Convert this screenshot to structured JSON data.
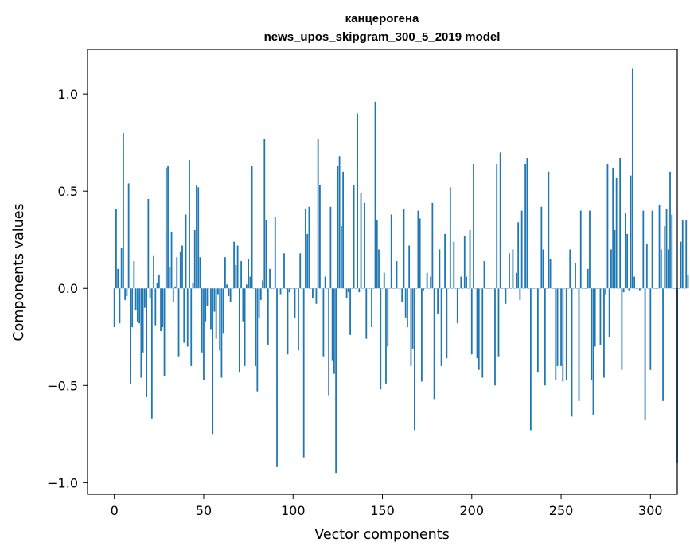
{
  "chart_data": {
    "type": "bar",
    "title_line1": "канцерогена",
    "title_line2": "news_upos_skipgram_300_5_2019 model",
    "xlabel": "Vector components",
    "ylabel": "Components values",
    "xlim": [
      -15,
      315
    ],
    "ylim": [
      -1.06,
      1.23
    ],
    "xticks": [
      0,
      50,
      100,
      150,
      200,
      250,
      300
    ],
    "yticks": [
      1.0,
      0.5,
      0.0,
      -0.5,
      -1.0
    ],
    "ytick_labels": [
      "1.0",
      "0.5",
      "0.0",
      "−0.5",
      "−1.0"
    ],
    "bar_color": "#1f77b4",
    "grid": false,
    "values": [
      -0.2,
      0.41,
      0.1,
      -0.18,
      0.21,
      0.8,
      -0.06,
      -0.04,
      0.54,
      -0.49,
      -0.2,
      0.14,
      -0.11,
      -0.17,
      -0.18,
      -0.46,
      -0.33,
      -0.1,
      -0.56,
      0.46,
      -0.05,
      -0.67,
      0.17,
      -0.19,
      0.03,
      0.07,
      -0.22,
      -0.2,
      -0.45,
      0.62,
      0.63,
      0.11,
      0.29,
      -0.07,
      0.01,
      0.16,
      -0.35,
      0.19,
      0.22,
      -0.28,
      0.38,
      -0.3,
      0.66,
      -0.4,
      0.03,
      0.3,
      0.53,
      0.52,
      0.16,
      -0.33,
      -0.47,
      -0.17,
      -0.09,
      0.0,
      -0.21,
      -0.75,
      -0.12,
      -0.26,
      -0.03,
      -0.32,
      -0.46,
      -0.23,
      0.16,
      0.02,
      -0.04,
      -0.07,
      0.0,
      0.24,
      0.12,
      0.22,
      -0.43,
      0.14,
      -0.17,
      -0.4,
      0.02,
      0.15,
      0.06,
      0.63,
      0.0,
      -0.4,
      -0.53,
      -0.15,
      -0.06,
      0.04,
      0.77,
      0.35,
      -0.29,
      0.1,
      0.0,
      0.0,
      0.37,
      -0.92,
      0.0,
      -0.03,
      0.0,
      0.18,
      0.0,
      -0.34,
      -0.02,
      0.0,
      0.0,
      -0.15,
      0.0,
      -0.32,
      0.18,
      0.0,
      -0.87,
      0.41,
      0.28,
      0.42,
      0.0,
      -0.05,
      0.0,
      -0.08,
      0.77,
      0.53,
      0.0,
      -0.35,
      0.06,
      0.0,
      -0.55,
      0.42,
      -0.37,
      -0.44,
      -0.95,
      0.63,
      0.68,
      0.32,
      0.6,
      0.0,
      -0.05,
      -0.02,
      -0.24,
      0.0,
      0.53,
      0.0,
      0.9,
      -0.02,
      0.49,
      0.0,
      0.44,
      -0.26,
      0.0,
      0.0,
      -0.2,
      0.0,
      0.96,
      0.35,
      0.2,
      -0.52,
      0.0,
      0.08,
      -0.49,
      -0.3,
      0.0,
      0.38,
      0.0,
      0.0,
      0.14,
      0.0,
      0.0,
      -0.07,
      0.41,
      -0.15,
      -0.2,
      0.22,
      -0.4,
      -0.31,
      -0.73,
      0.0,
      0.4,
      0.36,
      -0.48,
      -0.01,
      0.0,
      0.08,
      0.0,
      0.06,
      0.44,
      -0.57,
      0.0,
      -0.13,
      0.2,
      -0.4,
      0.0,
      0.28,
      -0.36,
      0.0,
      0.52,
      0.0,
      0.24,
      0.0,
      -0.18,
      0.0,
      0.06,
      0.0,
      0.27,
      0.06,
      0.0,
      0.3,
      -0.34,
      0.64,
      0.0,
      -0.36,
      -0.42,
      0.0,
      -0.46,
      0.14,
      0.0,
      0.0,
      0.0,
      0.0,
      0.0,
      -0.5,
      0.64,
      -0.35,
      0.7,
      0.0,
      0.0,
      -0.08,
      0.0,
      0.18,
      0.0,
      0.2,
      0.0,
      0.08,
      0.34,
      -0.06,
      0.4,
      0.0,
      0.64,
      0.67,
      0.0,
      -0.73,
      0.0,
      0.0,
      0.0,
      -0.43,
      0.0,
      0.42,
      0.2,
      -0.5,
      0.0,
      0.6,
      0.15,
      0.0,
      0.0,
      -0.47,
      -0.4,
      0.0,
      -0.4,
      -0.48,
      0.0,
      -0.47,
      0.0,
      0.2,
      -0.66,
      0.0,
      0.13,
      0.0,
      -0.58,
      0.4,
      0.0,
      0.0,
      0.0,
      0.1,
      0.4,
      -0.47,
      -0.65,
      -0.3,
      0.0,
      0.0,
      -0.29,
      0.0,
      -0.46,
      -0.03,
      0.64,
      -0.25,
      0.2,
      0.62,
      0.3,
      0.57,
      0.0,
      0.67,
      -0.42,
      -0.02,
      0.39,
      0.28,
      -0.01,
      0.58,
      1.13,
      0.06,
      0.0,
      0.0,
      -0.01,
      0.0,
      0.4,
      -0.68,
      0.23,
      0.0,
      -0.42,
      0.4,
      0.0,
      0.0,
      0.0,
      0.43,
      0.2,
      -0.58,
      0.32,
      0.41,
      0.2,
      0.6,
      0.38,
      0.0,
      0.0,
      -0.9,
      0.0,
      0.24,
      0.35,
      0.0,
      0.35,
      0.07
    ]
  }
}
